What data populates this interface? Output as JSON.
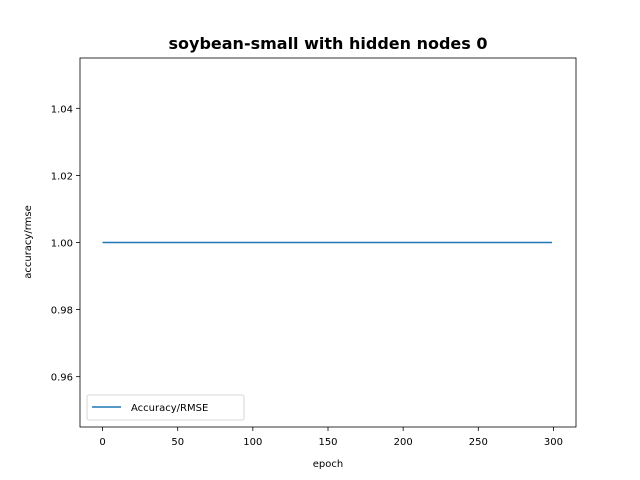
{
  "chart_data": {
    "type": "line",
    "title": "soybean-small with hidden nodes 0",
    "xlabel": "epoch",
    "ylabel": "accuracy/rmse",
    "xlim": [
      -15,
      315
    ],
    "ylim": [
      0.945,
      1.055
    ],
    "xticks": [
      0,
      50,
      100,
      150,
      200,
      250,
      300
    ],
    "xtick_labels": [
      "0",
      "50",
      "100",
      "150",
      "200",
      "250",
      "300"
    ],
    "yticks": [
      0.96,
      0.98,
      1.0,
      1.02,
      1.04
    ],
    "ytick_labels": [
      "0.96",
      "0.98",
      "1.00",
      "1.02",
      "1.04"
    ],
    "grid": false,
    "legend_position": "lower-left",
    "series": [
      {
        "name": "Accuracy/RMSE",
        "color": "#1f77b4",
        "x": [
          0,
          299
        ],
        "y": [
          1.0,
          1.0
        ]
      }
    ]
  }
}
